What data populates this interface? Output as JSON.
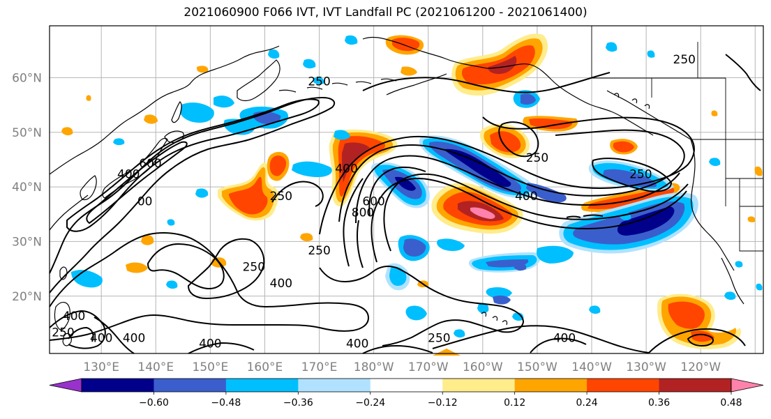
{
  "title": "2021060900 F066 IVT, IVT Landfall PC (2021061200 - 2021061400)",
  "lat_labels": [
    "60°N",
    "50°N",
    "40°N",
    "30°N",
    "20°N"
  ],
  "lon_labels": [
    "130°E",
    "140°E",
    "150°E",
    "160°E",
    "170°E",
    "180°W",
    "170°W",
    "160°W",
    "150°W",
    "140°W",
    "130°W",
    "120°W"
  ],
  "contour_levels": [
    "250",
    "400",
    "600",
    "800"
  ],
  "contour_labels": [
    {
      "text": "250",
      "lon": 170,
      "lat": 59
    },
    {
      "text": "250",
      "lon": -150,
      "lat": 45
    },
    {
      "text": "250",
      "lon": -131,
      "lat": 42
    },
    {
      "text": "250",
      "lon": -123,
      "lat": 63
    },
    {
      "text": "250",
      "lon": 163,
      "lat": 38
    },
    {
      "text": "250",
      "lon": 170,
      "lat": 28
    },
    {
      "text": "250",
      "lon": 158,
      "lat": 25
    },
    {
      "text": "250",
      "lon": -168,
      "lat": 12
    },
    {
      "text": "250",
      "lon": 123,
      "lat": 13
    },
    {
      "text": "400",
      "lon": 163,
      "lat": 22
    },
    {
      "text": "400",
      "lon": 175,
      "lat": 43
    },
    {
      "text": "400",
      "lon": -152,
      "lat": 38
    },
    {
      "text": "400",
      "lon": -145,
      "lat": 12
    },
    {
      "text": "400",
      "lon": 150,
      "lat": 11
    },
    {
      "text": "400",
      "lon": 177,
      "lat": 11
    },
    {
      "text": "400",
      "lon": 130,
      "lat": 12
    },
    {
      "text": "400",
      "lon": 125,
      "lat": 16
    },
    {
      "text": "400",
      "lon": 135,
      "lat": 42
    },
    {
      "text": "400",
      "lon": 136,
      "lat": 12
    },
    {
      "text": "600",
      "lon": 139,
      "lat": 44
    },
    {
      "text": "600",
      "lon": -180,
      "lat": 37
    },
    {
      "text": "800",
      "lon": 178,
      "lat": 35
    },
    {
      "text": "00",
      "lon": 138,
      "lat": 37
    }
  ],
  "colorbar": {
    "ticks": [
      "−0.60",
      "−0.48",
      "−0.36",
      "−0.24",
      "−0.12",
      "0.12",
      "0.24",
      "0.36",
      "0.48",
      "0.60"
    ],
    "colors": [
      "#9932cc",
      "#00008b",
      "#3a5fcd",
      "#00bfff",
      "#b0e2ff",
      "#ffffff",
      "#ffec8b",
      "#ffa500",
      "#ff4500",
      "#b22222",
      "#ff82ab"
    ]
  }
}
